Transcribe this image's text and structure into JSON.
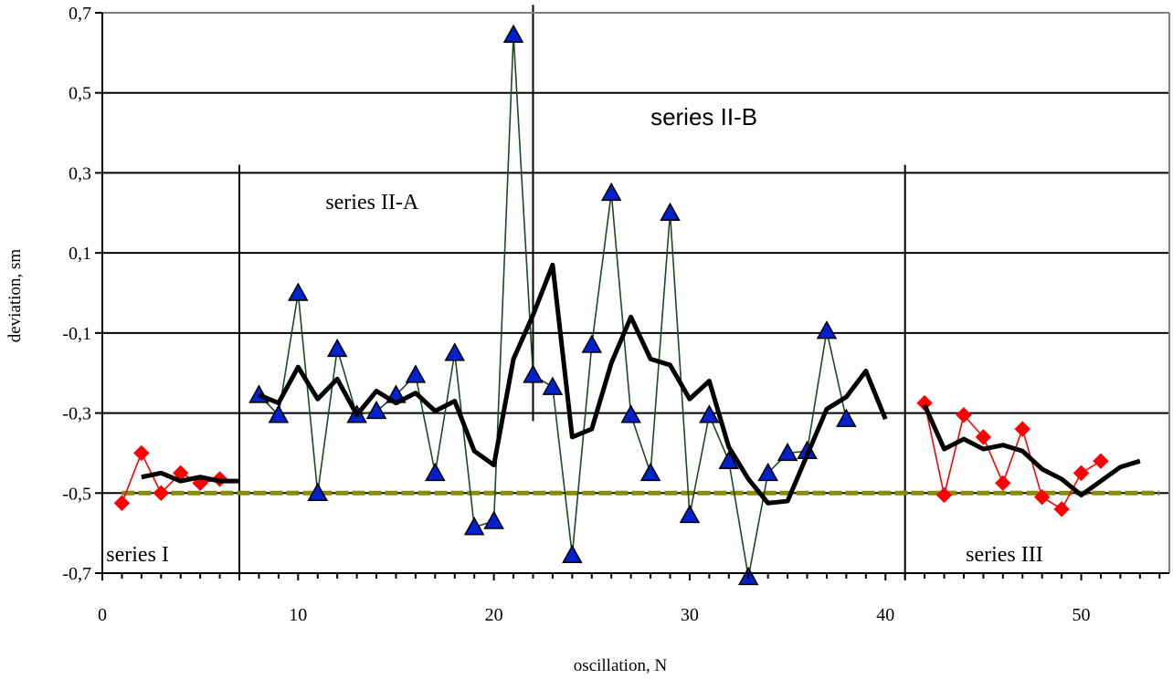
{
  "chart_data": {
    "type": "line",
    "xlabel": "oscillation, N",
    "ylabel": "deviation, sm",
    "xlim": [
      0,
      54.5
    ],
    "ylim": [
      -0.7,
      0.7
    ],
    "x_ticks": [
      0,
      10,
      20,
      30,
      40,
      50
    ],
    "y_ticks": [
      0.7,
      0.5,
      0.3,
      0.1,
      -0.1,
      -0.3,
      -0.5,
      -0.7
    ],
    "y_tick_labels": [
      "0,7",
      "0,5",
      "0,3",
      "0,1",
      "-0,1",
      "-0,3",
      "-0,5",
      "-0,7"
    ],
    "grid": "horizontal",
    "region_labels": [
      {
        "text": "series I",
        "x": 0.2,
        "y": -0.67
      },
      {
        "text": "series II-A",
        "x": 11.4,
        "y": 0.21
      },
      {
        "text": "series II-B",
        "x": 28.0,
        "y": 0.42
      },
      {
        "text": "series III",
        "x": 44.1,
        "y": -0.67
      }
    ],
    "region_dividers": [
      {
        "x": 7,
        "y_top": 0.32
      },
      {
        "x": 22,
        "y_top": 0.72,
        "y_bottom": -0.32
      },
      {
        "x": 41,
        "y_top": 0.32
      }
    ],
    "series": [
      {
        "color": "#ff0000",
        "marker": "diamond",
        "x": [
          1,
          2,
          3,
          4,
          5,
          6
        ],
        "values": [
          -0.525,
          -0.4,
          -0.5,
          -0.45,
          -0.475,
          -0.465
        ]
      },
      {
        "color": "#ff0000",
        "marker": "diamond",
        "x": [
          42,
          43,
          44,
          45,
          46,
          47,
          48,
          49,
          50,
          51
        ],
        "values": [
          -0.275,
          -0.505,
          -0.305,
          -0.36,
          -0.475,
          -0.34,
          -0.51,
          -0.54,
          -0.45,
          -0.42
        ]
      },
      {
        "color": "#1e4a1e",
        "marker": "triangle",
        "marker_color": "#0022cc",
        "x": [
          8,
          9,
          10,
          11,
          12,
          13,
          14,
          15,
          16,
          17,
          18,
          19,
          20,
          21,
          22,
          23,
          24,
          25,
          26,
          27,
          28,
          29,
          30,
          31,
          32,
          33,
          34,
          35,
          36,
          37,
          38
        ],
        "values": [
          -0.255,
          -0.305,
          0.0,
          -0.5,
          -0.14,
          -0.305,
          -0.295,
          -0.255,
          -0.205,
          -0.45,
          -0.15,
          -0.585,
          -0.57,
          0.645,
          -0.205,
          -0.235,
          -0.655,
          -0.13,
          0.25,
          -0.305,
          -0.45,
          0.2,
          -0.555,
          -0.305,
          -0.42,
          -0.71,
          -0.45,
          -0.4,
          -0.395,
          -0.095,
          -0.315
        ]
      },
      {
        "color": "#000000",
        "marker": "none",
        "x": [
          2,
          3,
          4,
          5,
          6,
          7
        ],
        "values": [
          -0.46,
          -0.45,
          -0.47,
          -0.46,
          -0.47,
          -0.47
        ]
      },
      {
        "color": "#000000",
        "marker": "none",
        "x": [
          8,
          9,
          10,
          11,
          12,
          13,
          14,
          15,
          16,
          17,
          18,
          19,
          20,
          21,
          22,
          23,
          24,
          25,
          26,
          27,
          28,
          29,
          30,
          31,
          32,
          33,
          34,
          35,
          36,
          37,
          38,
          39,
          40
        ],
        "values": [
          -0.255,
          -0.275,
          -0.185,
          -0.265,
          -0.215,
          -0.305,
          -0.245,
          -0.275,
          -0.25,
          -0.295,
          -0.27,
          -0.395,
          -0.43,
          -0.165,
          -0.055,
          0.07,
          -0.36,
          -0.34,
          -0.175,
          -0.06,
          -0.165,
          -0.18,
          -0.265,
          -0.22,
          -0.385,
          -0.465,
          -0.525,
          -0.52,
          -0.405,
          -0.29,
          -0.26,
          -0.195,
          -0.315
        ]
      },
      {
        "color": "#000000",
        "marker": "none",
        "x": [
          42,
          43,
          44,
          45,
          46,
          47,
          48,
          49,
          50,
          51,
          52,
          53
        ],
        "values": [
          -0.28,
          -0.39,
          -0.365,
          -0.39,
          -0.38,
          -0.395,
          -0.44,
          -0.465,
          -0.505,
          -0.47,
          -0.435,
          -0.42
        ]
      },
      {
        "color": "#8b8b00",
        "marker": "none",
        "dash": true,
        "x": [
          1,
          54
        ],
        "values": [
          -0.5,
          -0.5
        ]
      }
    ]
  }
}
